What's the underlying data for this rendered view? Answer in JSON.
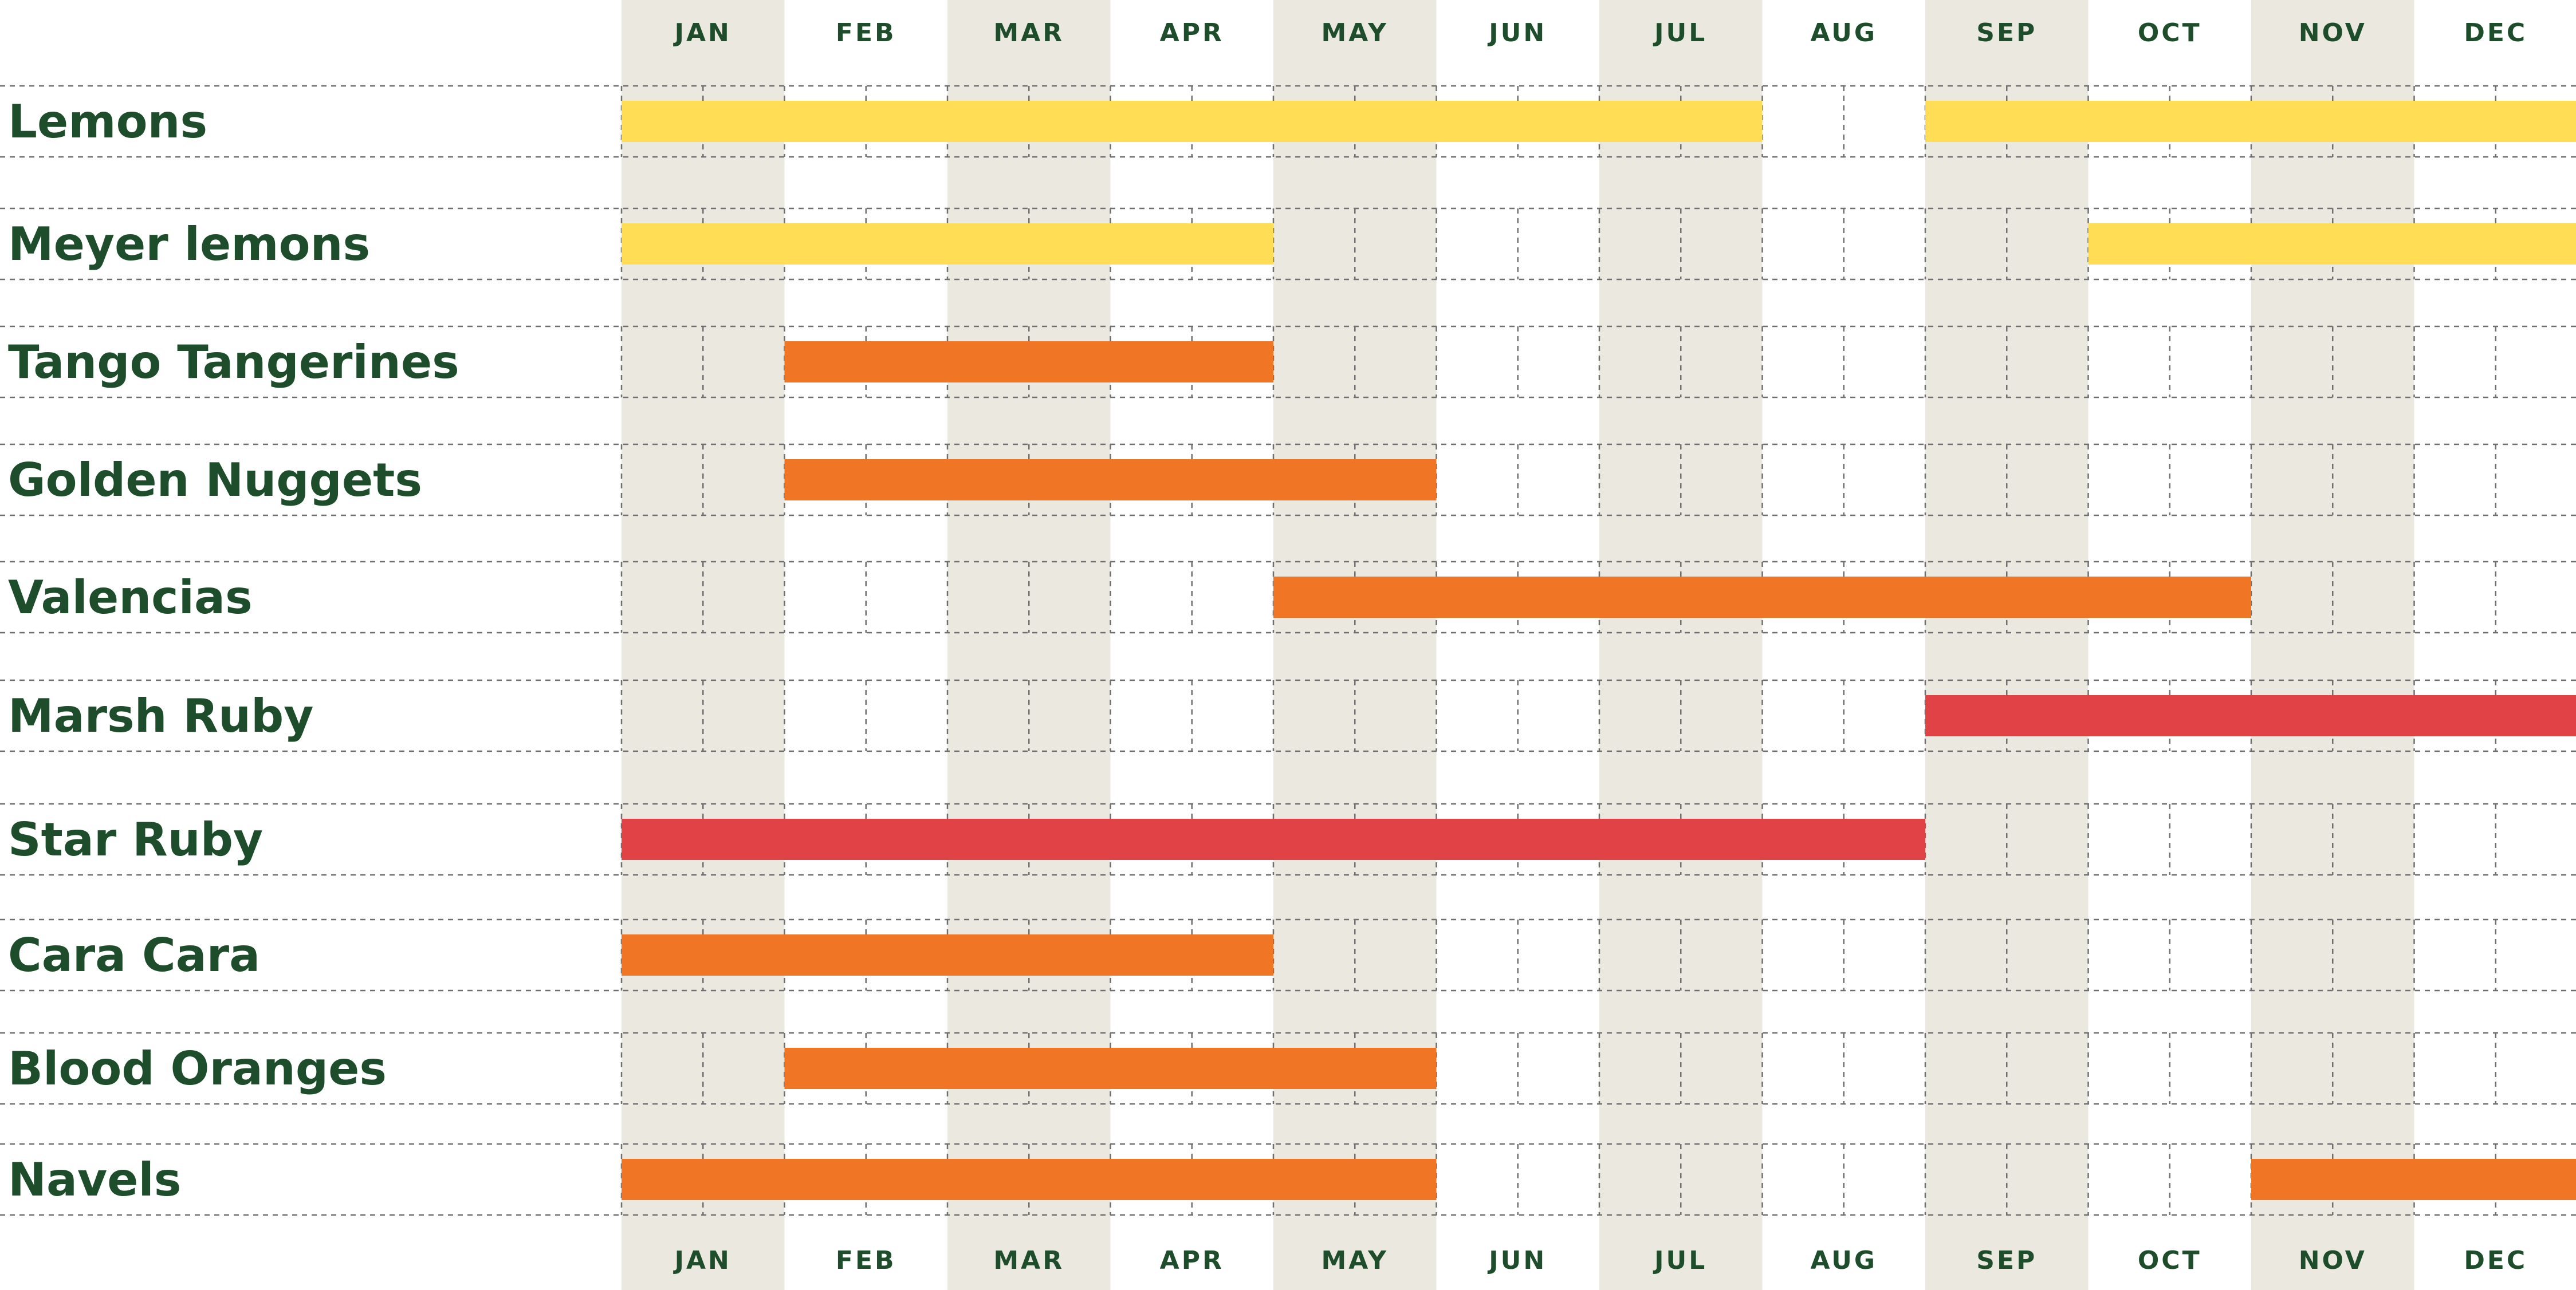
{
  "chart_data": {
    "type": "gantt",
    "months": [
      "JAN",
      "FEB",
      "MAR",
      "APR",
      "MAY",
      "JUN",
      "JUL",
      "AUG",
      "SEP",
      "OCT",
      "NOV",
      "DEC"
    ],
    "shaded_months": [
      "JAN",
      "MAR",
      "MAY",
      "JUL",
      "SEP",
      "NOV"
    ],
    "rows": [
      {
        "label": "Lemons",
        "color": "#ffde55",
        "ranges": [
          [
            1,
            7.0
          ],
          [
            9,
            12.0
          ]
        ]
      },
      {
        "label": "Meyer lemons",
        "color": "#ffde55",
        "ranges": [
          [
            1,
            4.0
          ],
          [
            10,
            12.0
          ]
        ]
      },
      {
        "label": "Tango Tangerines",
        "color": "#f07625",
        "ranges": [
          [
            2,
            4.0
          ]
        ]
      },
      {
        "label": "Golden Nuggets",
        "color": "#f07625",
        "ranges": [
          [
            2,
            5.0
          ]
        ]
      },
      {
        "label": "Valencias",
        "color": "#f07625",
        "ranges": [
          [
            5,
            10.0
          ]
        ]
      },
      {
        "label": "Marsh Ruby",
        "color": "#e04245",
        "ranges": [
          [
            9,
            12.0
          ]
        ]
      },
      {
        "label": "Star Ruby",
        "color": "#e04245",
        "ranges": [
          [
            1,
            8.0
          ]
        ]
      },
      {
        "label": "Cara Cara",
        "color": "#f07625",
        "ranges": [
          [
            1,
            4.0
          ]
        ]
      },
      {
        "label": "Blood Oranges",
        "color": "#f07625",
        "ranges": [
          [
            2,
            5.0
          ]
        ]
      },
      {
        "label": "Navels",
        "color": "#f07625",
        "ranges": [
          [
            1,
            5.0
          ],
          [
            11,
            12.0
          ]
        ]
      }
    ],
    "colors": {
      "text": "#1e4d2b",
      "shade": "#ebe8e0",
      "lemon": "#ffde55",
      "orange": "#f07625",
      "grapefruit": "#e04245"
    }
  }
}
